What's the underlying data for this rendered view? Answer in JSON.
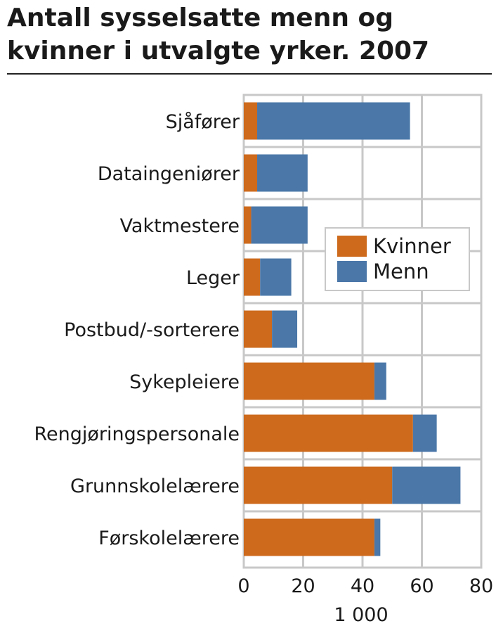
{
  "chart_data": {
    "type": "bar",
    "stacked": true,
    "orientation": "horizontal",
    "title": "Antall sysselsatte menn og kvinner i utvalgte yrker. 2007",
    "xlabel": "1 000",
    "ylabel": "",
    "xlim": [
      0,
      80
    ],
    "xticks": [
      "0",
      "20",
      "40",
      "60",
      "80"
    ],
    "grid": true,
    "legend_position": "right",
    "categories": [
      "Sjåfører",
      "Dataingeniører",
      "Vaktmestere",
      "Leger",
      "Postbud/-sorterere",
      "Sykepleiere",
      "Rengjøringspersonale",
      "Grunnskolelærere",
      "Førskolelærere"
    ],
    "series": [
      {
        "name": "Kvinner",
        "color": "#cd6a1c",
        "values": [
          4.5,
          4.5,
          2.5,
          5.5,
          9.5,
          44,
          57,
          50,
          44
        ]
      },
      {
        "name": "Menn",
        "color": "#4a77a8",
        "values": [
          51.5,
          17,
          19,
          10.5,
          8.5,
          4,
          8,
          23,
          2
        ]
      }
    ]
  }
}
